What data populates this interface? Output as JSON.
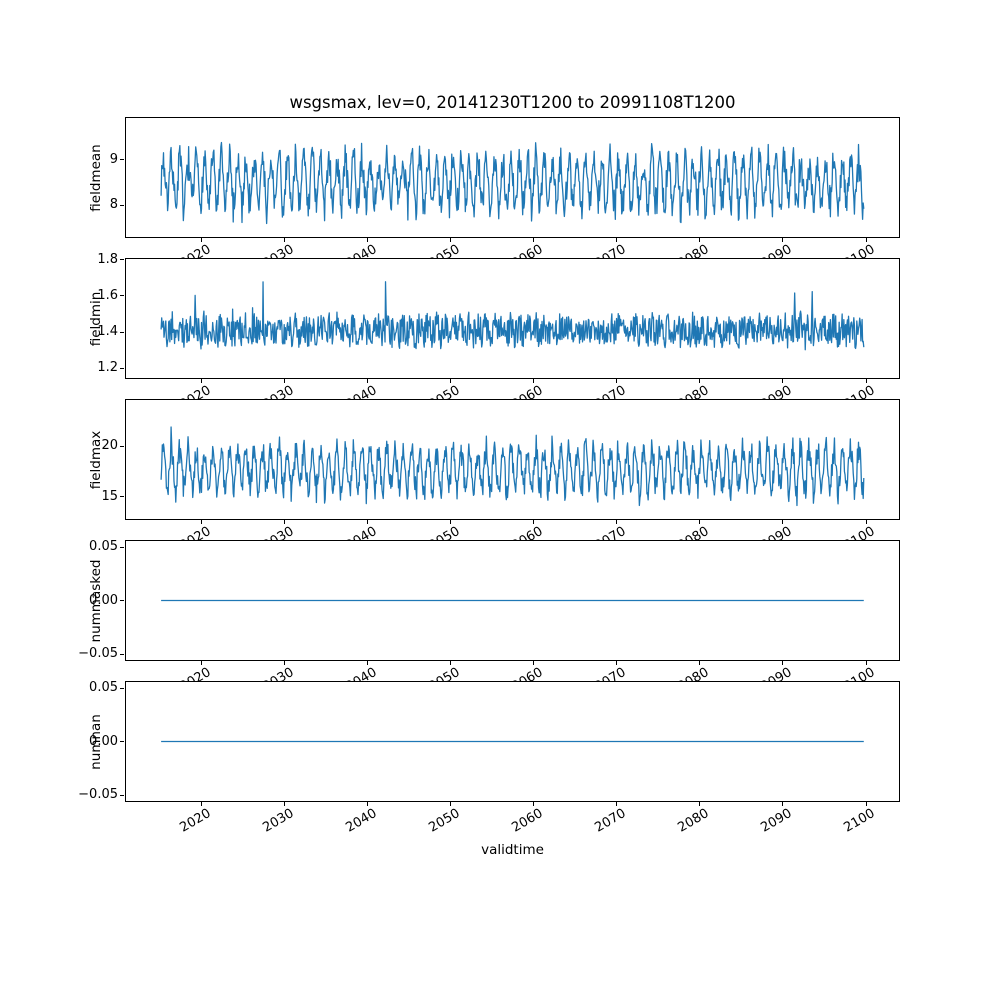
{
  "title": "wsgsmax, lev=0, 20141230T1200 to 20991108T1200",
  "xlabel": "validtime",
  "line_color": "#1f77b4",
  "xlim": [
    2010.75,
    2104.1
  ],
  "x_range": [
    2014.99,
    2099.85
  ],
  "x_ticks": [
    {
      "v": 2020,
      "label": "2020"
    },
    {
      "v": 2030,
      "label": "2030"
    },
    {
      "v": 2040,
      "label": "2040"
    },
    {
      "v": 2050,
      "label": "2050"
    },
    {
      "v": 2060,
      "label": "2060"
    },
    {
      "v": 2070,
      "label": "2070"
    },
    {
      "v": 2080,
      "label": "2080"
    },
    {
      "v": 2090,
      "label": "2090"
    },
    {
      "v": 2100,
      "label": "2100"
    }
  ],
  "chart_data": [
    {
      "type": "line",
      "name": "fieldmean",
      "ylabel": "fieldmean",
      "ylim": [
        7.28,
        9.93
      ],
      "yticks": [
        {
          "v": 8,
          "label": "8"
        },
        {
          "v": 9,
          "label": "9"
        }
      ],
      "gen": {
        "seed": 7,
        "n": 1200,
        "base": 8.5,
        "seas": 0.5,
        "noise": 0.32,
        "clip": [
          7.38,
          9.82
        ]
      }
    },
    {
      "type": "line",
      "name": "fieldmin",
      "ylabel": "fieldmin",
      "ylim": [
        1.14,
        1.81
      ],
      "yticks": [
        {
          "v": 1.2,
          "label": "1.2"
        },
        {
          "v": 1.4,
          "label": "1.4"
        },
        {
          "v": 1.6,
          "label": "1.6"
        },
        {
          "v": 1.8,
          "label": "1.8"
        }
      ],
      "gen": {
        "seed": 11,
        "n": 1200,
        "base": 1.41,
        "seas": 0.022,
        "noise": 0.085,
        "spike": 0.33,
        "spike_p": 0.006,
        "clip": [
          1.18,
          1.77
        ]
      }
    },
    {
      "type": "line",
      "name": "fieldmax",
      "ylabel": "fieldmax",
      "ylim": [
        12.7,
        24.7
      ],
      "yticks": [
        {
          "v": 15,
          "label": "15"
        },
        {
          "v": 20,
          "label": "20"
        }
      ],
      "gen": {
        "seed": 23,
        "n": 1200,
        "base": 17.7,
        "seas": 2.0,
        "noise": 1.1,
        "spike": 1.8,
        "spike_p": 0.005,
        "clip": [
          13.2,
          24.1
        ]
      }
    },
    {
      "type": "line",
      "name": "nummasked",
      "ylabel": "nummasked",
      "ylim": [
        -0.0565,
        0.0565
      ],
      "yticks": [
        {
          "v": -0.05,
          "label": "−0.05"
        },
        {
          "v": 0,
          "label": "0.00"
        },
        {
          "v": 0.05,
          "label": "0.05"
        }
      ],
      "constant": 0
    },
    {
      "type": "line",
      "name": "numnan",
      "ylabel": "numnan",
      "ylim": [
        -0.0565,
        0.0565
      ],
      "yticks": [
        {
          "v": -0.05,
          "label": "−0.05"
        },
        {
          "v": 0,
          "label": "0.00"
        },
        {
          "v": 0.05,
          "label": "0.05"
        }
      ],
      "constant": 0
    }
  ]
}
